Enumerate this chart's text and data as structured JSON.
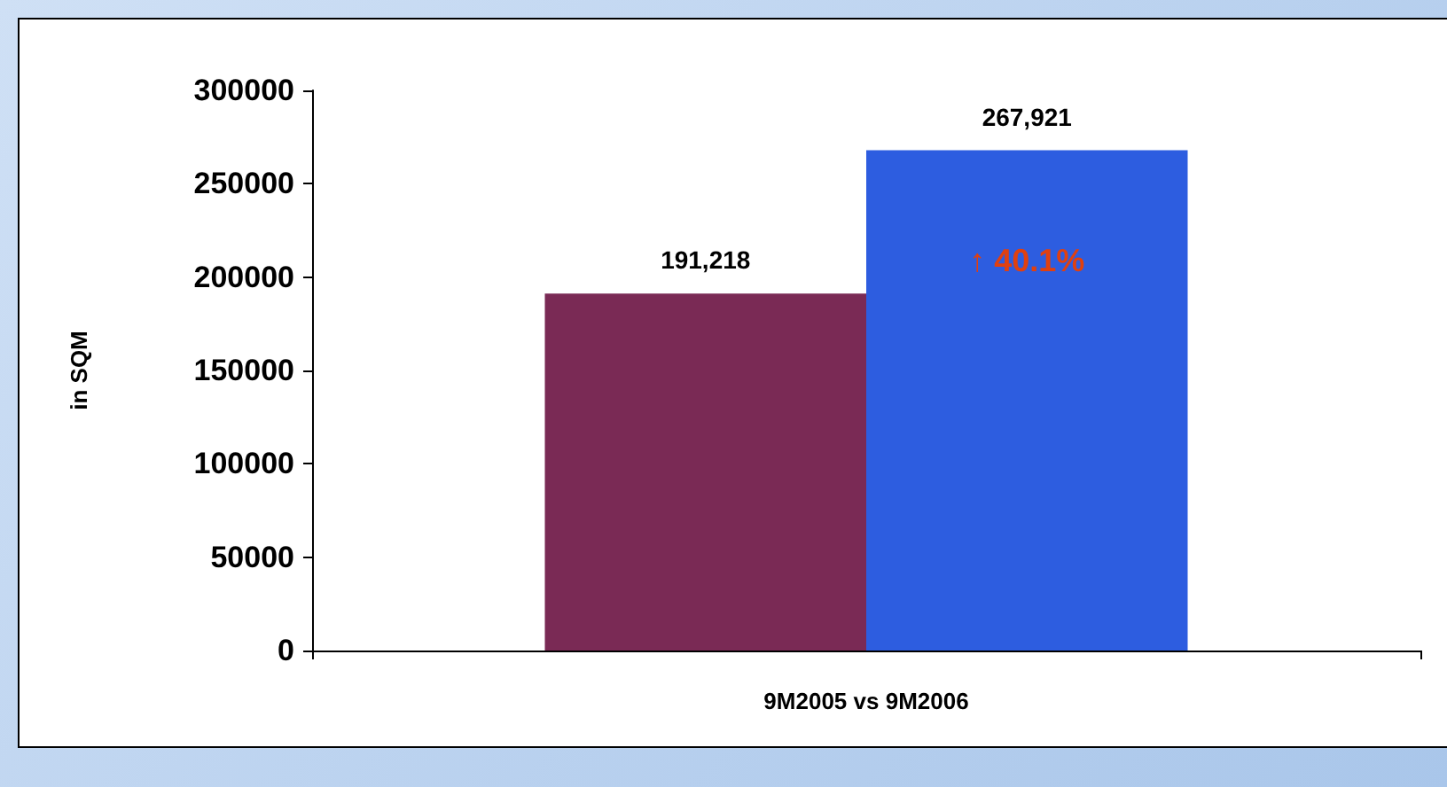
{
  "chart_data": {
    "type": "bar",
    "ylabel": "in SQM",
    "categories": [
      "9M2005 vs 9M2006"
    ],
    "series": [
      {
        "color": "#7a2a55",
        "values": [
          191218
        ],
        "value_labels": [
          "191,218"
        ]
      },
      {
        "color": "#2d5de0",
        "values": [
          267921
        ],
        "value_labels": [
          "267,921"
        ]
      }
    ],
    "ylim": [
      0,
      300000
    ],
    "yticks": [
      0,
      50000,
      100000,
      150000,
      200000,
      250000,
      300000
    ],
    "grid": false,
    "annotations": [
      "↑ 40.1%"
    ]
  }
}
